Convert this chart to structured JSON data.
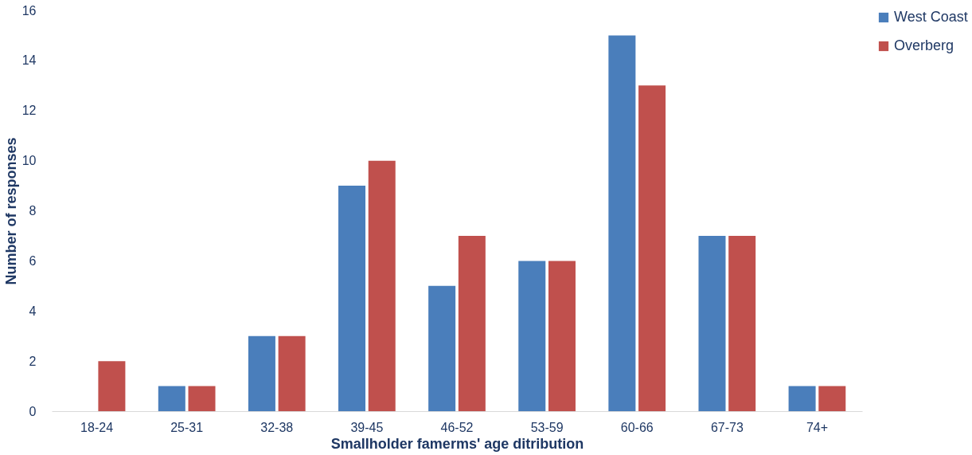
{
  "chart_data": {
    "type": "bar",
    "xlabel": "Smallholder famerms' age ditribution",
    "ylabel": "Number of responses",
    "categories": [
      "18-24",
      "25-31",
      "32-38",
      "39-45",
      "46-52",
      "53-59",
      "60-66",
      "67-73",
      "74+"
    ],
    "series": [
      {
        "name": "West Coast",
        "color": "#4a7ebb",
        "values": [
          0,
          1,
          3,
          9,
          5,
          6,
          15,
          7,
          1
        ]
      },
      {
        "name": "Overberg",
        "color": "#c0504d",
        "values": [
          2,
          1,
          3,
          10,
          7,
          6,
          13,
          7,
          1
        ]
      }
    ],
    "ylim": [
      0,
      16
    ],
    "yticks": [
      0,
      2,
      4,
      6,
      8,
      10,
      12,
      14,
      16
    ],
    "grid": false,
    "legend": "top right"
  }
}
